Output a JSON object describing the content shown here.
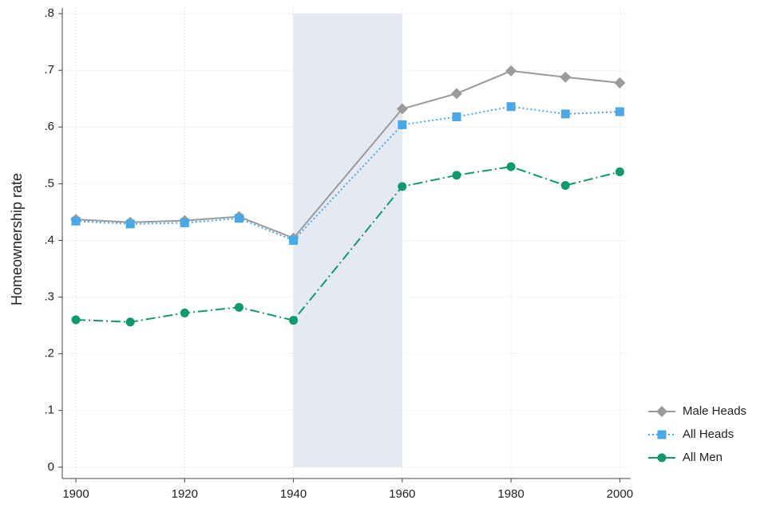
{
  "chart_data": {
    "type": "line",
    "y_label": "Homeownership rate",
    "x": [
      1900,
      1910,
      1920,
      1930,
      1940,
      1960,
      1970,
      1980,
      1990,
      2000
    ],
    "series": [
      {
        "name": "Male Heads",
        "color": "#9a9a9a",
        "style": "solid",
        "marker": "diamond",
        "values": [
          0.437,
          0.432,
          0.435,
          0.442,
          0.404,
          0.632,
          0.659,
          0.699,
          0.688,
          0.678
        ]
      },
      {
        "name": "All Heads",
        "color": "#4aa8e6",
        "style": "dotted",
        "marker": "square",
        "values": [
          0.434,
          0.429,
          0.431,
          0.439,
          0.4,
          0.604,
          0.618,
          0.636,
          0.623,
          0.627
        ]
      },
      {
        "name": "All Men",
        "color": "#0f9a6e",
        "style": "dashdot",
        "marker": "circle",
        "values": [
          0.26,
          0.256,
          0.272,
          0.282,
          0.259,
          0.495,
          0.515,
          0.53,
          0.497,
          0.521
        ]
      }
    ],
    "shaded_x": [
      1940,
      1960
    ],
    "shade_color": "#e4e9f2",
    "xlim": [
      1897.5,
      2002
    ],
    "ylim": [
      -0.02,
      0.81
    ],
    "xticks": [
      1900,
      1920,
      1940,
      1960,
      1980,
      2000
    ],
    "yticks": [
      0,
      {
        "value": 0.1,
        "label": ".1"
      },
      {
        "value": 0.2,
        "label": ".2"
      },
      {
        "value": 0.3,
        "label": ".3"
      },
      {
        "value": 0.4,
        "label": ".4"
      },
      {
        "value": 0.5,
        "label": ".5"
      },
      {
        "value": 0.6,
        "label": ".6"
      },
      {
        "value": 0.7,
        "label": ".7"
      },
      {
        "value": 0.8,
        "label": ".8"
      }
    ],
    "grid": true,
    "legend": "lower right outside"
  }
}
